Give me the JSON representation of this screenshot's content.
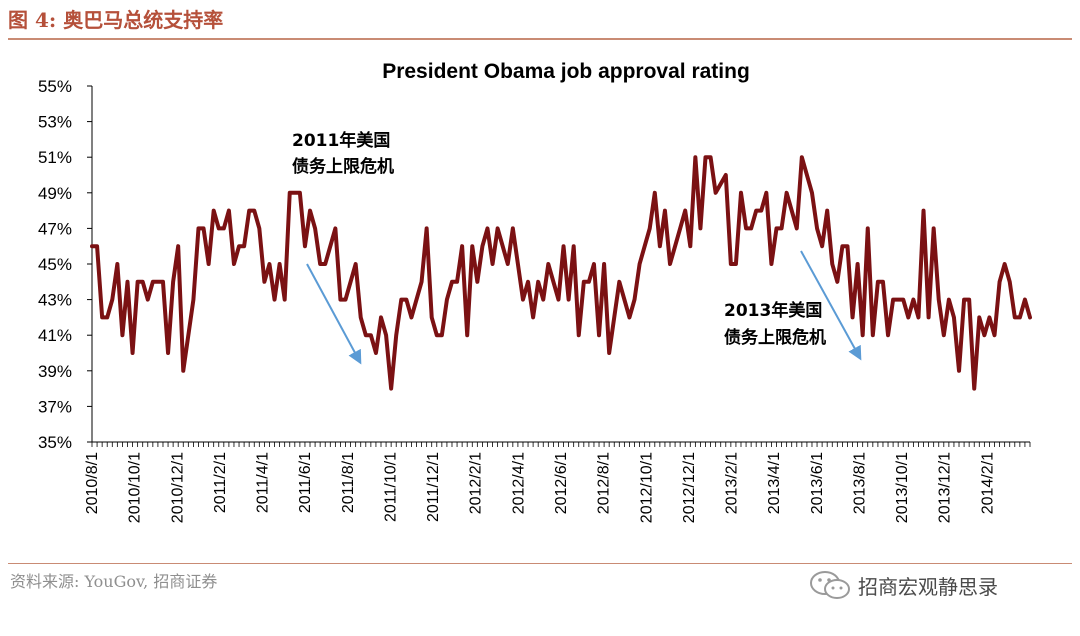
{
  "figure_title": "图 4: 奥巴马总统支持率",
  "source_text": "资料来源: YouGov, 招商证券",
  "watermark_text": "招商宏观静思录",
  "chart_data": {
    "type": "line",
    "title": "President Obama job approval rating",
    "xlabel": "",
    "ylabel": "",
    "ylim": [
      35,
      55
    ],
    "y_ticks": [
      "35%",
      "37%",
      "39%",
      "41%",
      "43%",
      "45%",
      "47%",
      "49%",
      "51%",
      "53%",
      "55%"
    ],
    "x_tick_labels": [
      "2010/8/1",
      "2010/10/1",
      "2010/12/1",
      "2011/2/1",
      "2011/4/1",
      "2011/6/1",
      "2011/8/1",
      "2011/10/1",
      "2011/12/1",
      "2012/2/1",
      "2012/4/1",
      "2012/6/1",
      "2012/8/1",
      "2012/10/1",
      "2012/12/1",
      "2013/2/1",
      "2013/4/1",
      "2013/6/1",
      "2013/8/1",
      "2013/10/1",
      "2013/12/1",
      "2014/2/1"
    ],
    "grid": false,
    "line_color": "#7b1113",
    "arrow_color": "#5b9bd5",
    "series": [
      {
        "values": [
          46,
          46,
          42,
          42,
          43,
          45,
          41,
          44,
          40,
          44,
          44,
          43,
          44,
          44,
          44,
          40,
          44,
          46,
          39,
          41,
          43,
          47,
          47,
          45,
          48,
          47,
          47,
          48,
          45,
          46,
          46,
          48,
          48,
          47,
          44,
          45,
          43,
          45,
          43,
          49,
          49,
          49,
          46,
          48,
          47,
          45,
          45,
          46,
          47,
          43,
          43,
          44,
          45,
          42,
          41,
          41,
          40,
          42,
          41,
          38,
          41,
          43,
          43,
          42,
          43,
          44,
          47,
          42,
          41,
          41,
          43,
          44,
          44,
          46,
          41,
          46,
          44,
          46,
          47,
          45,
          47,
          46,
          45,
          47,
          45,
          43,
          44,
          42,
          44,
          43,
          45,
          44,
          43,
          46,
          43,
          46,
          41,
          44,
          44,
          45,
          41,
          45,
          40,
          42,
          44,
          43,
          42,
          43,
          45,
          46,
          47,
          49,
          46,
          48,
          45,
          46,
          47,
          48,
          46,
          51,
          47,
          51,
          51,
          49,
          49.5,
          50,
          45,
          45,
          49,
          47,
          47,
          48,
          48,
          49,
          45,
          47,
          47,
          49,
          48,
          47,
          51,
          50,
          49,
          47,
          46,
          48,
          45,
          44,
          46,
          46,
          42,
          45,
          41,
          47,
          41,
          44,
          44,
          41,
          43,
          43,
          43,
          42,
          43,
          42,
          48,
          42,
          47,
          43,
          41,
          43,
          42,
          39,
          43,
          43,
          38,
          42,
          41,
          42,
          41,
          44,
          45,
          44,
          42,
          42,
          43,
          42
        ]
      }
    ],
    "annotations": [
      {
        "line1": "2011年美国",
        "line2": "债务上限危机"
      },
      {
        "line1": "2013年美国",
        "line2": "债务上限危机"
      }
    ]
  }
}
